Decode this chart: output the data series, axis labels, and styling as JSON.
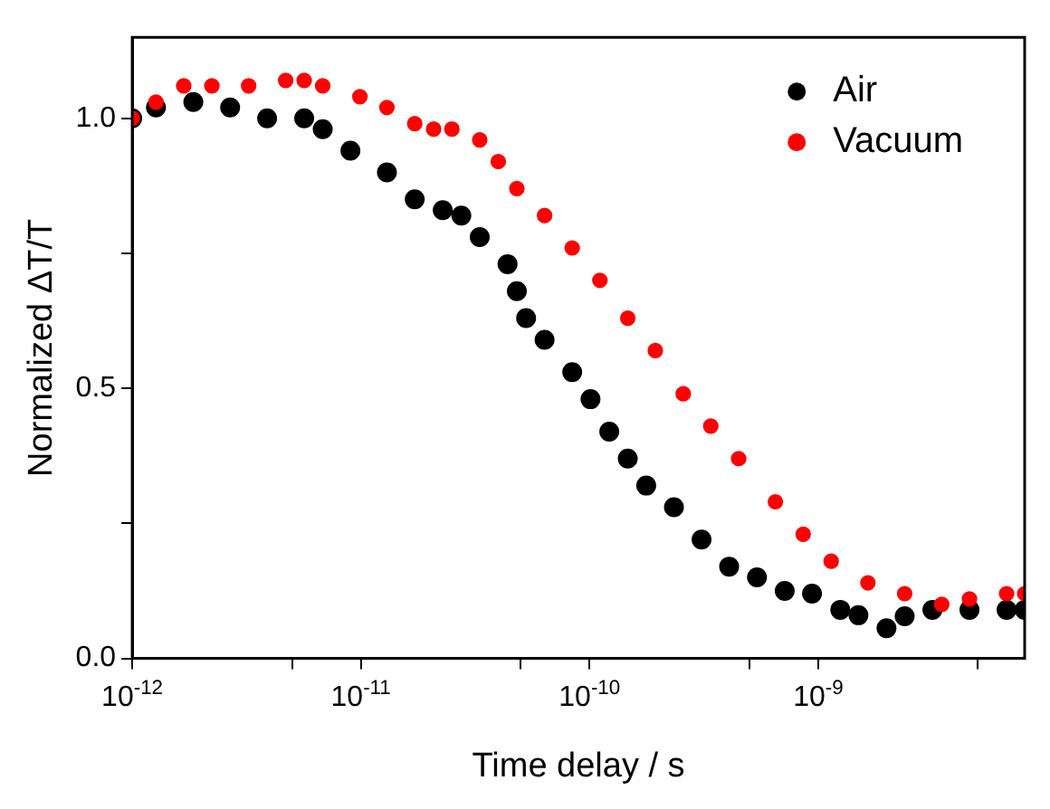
{
  "chart_data": {
    "type": "scatter",
    "xlabel": "Time delay / s",
    "ylabel": "Normalized ΔT/T",
    "log": "x",
    "grid": false,
    "legend": "top right",
    "marker": "circle",
    "xlim": [
      1e-12,
      8e-09
    ],
    "xticks": [
      {
        "value": 1e-12,
        "label": "10$^{-12}$"
      },
      {
        "value": 5e-12,
        "label": null
      },
      {
        "value": 1e-11,
        "label": "10$^{-11}$"
      },
      {
        "value": 5e-11,
        "label": null
      },
      {
        "value": 1e-10,
        "label": "10$^{-10}$"
      },
      {
        "value": 5e-10,
        "label": null
      },
      {
        "value": 1e-09,
        "label": "10$^{-9}$"
      },
      {
        "value": 5e-09,
        "label": null
      }
    ],
    "ylim": [
      0,
      1.15
    ],
    "yticks": [
      {
        "value": 0,
        "label": "0.0"
      },
      {
        "value": 0.25,
        "label": null
      },
      {
        "value": 0.5,
        "label": "0.5"
      },
      {
        "value": 0.75,
        "label": null
      },
      {
        "value": 1.0,
        "label": "1.0"
      }
    ],
    "series": [
      {
        "name": "Air",
        "color": "#000000",
        "x": [
          1e-12,
          1.27e-12,
          1.85e-12,
          2.68e-12,
          3.89e-12,
          5.65e-12,
          6.81e-12,
          9e-12,
          1.3e-11,
          1.72e-11,
          2.28e-11,
          2.75e-11,
          3.31e-11,
          4.38e-11,
          4.81e-11,
          5.28e-11,
          6.36e-11,
          8.4e-11,
          1.01e-10,
          1.22e-10,
          1.47e-10,
          1.77e-10,
          2.34e-10,
          3.09e-10,
          4.08e-10,
          5.4e-10,
          7.14e-10,
          9.4e-10,
          1.25e-09,
          1.5e-09,
          1.99e-09,
          2.39e-09,
          3.16e-09,
          4.59e-09,
          6.67e-09,
          8e-09
        ],
        "values": [
          1.0,
          1.02,
          1.03,
          1.02,
          1.0,
          1.0,
          0.98,
          0.94,
          0.9,
          0.85,
          0.83,
          0.82,
          0.78,
          0.73,
          0.68,
          0.63,
          0.59,
          0.53,
          0.48,
          0.42,
          0.37,
          0.32,
          0.28,
          0.22,
          0.17,
          0.15,
          0.125,
          0.12,
          0.09,
          0.08,
          0.056,
          0.078,
          0.09,
          0.09,
          0.09,
          0.09
        ]
      },
      {
        "name": "Vacuum",
        "color": "#ff0000",
        "x": [
          1e-12,
          1.27e-12,
          1.68e-12,
          2.23e-12,
          3.23e-12,
          4.69e-12,
          5.65e-12,
          6.81e-12,
          9.9e-12,
          1.3e-11,
          1.72e-11,
          2.08e-11,
          2.5e-11,
          3.31e-11,
          3.99e-11,
          4.81e-11,
          6.36e-11,
          8.4e-11,
          1.11e-10,
          1.47e-10,
          1.94e-10,
          2.57e-10,
          3.39e-10,
          4.49e-10,
          6.5e-10,
          8.6e-10,
          1.14e-09,
          1.65e-09,
          2.39e-09,
          3.47e-09,
          4.59e-09,
          6.67e-09,
          8e-09
        ],
        "values": [
          1.0,
          1.03,
          1.06,
          1.06,
          1.06,
          1.07,
          1.07,
          1.06,
          1.04,
          1.02,
          0.99,
          0.98,
          0.98,
          0.96,
          0.92,
          0.87,
          0.82,
          0.76,
          0.7,
          0.63,
          0.57,
          0.49,
          0.43,
          0.37,
          0.29,
          0.23,
          0.18,
          0.14,
          0.12,
          0.1,
          0.11,
          0.12,
          0.12
        ]
      }
    ]
  }
}
